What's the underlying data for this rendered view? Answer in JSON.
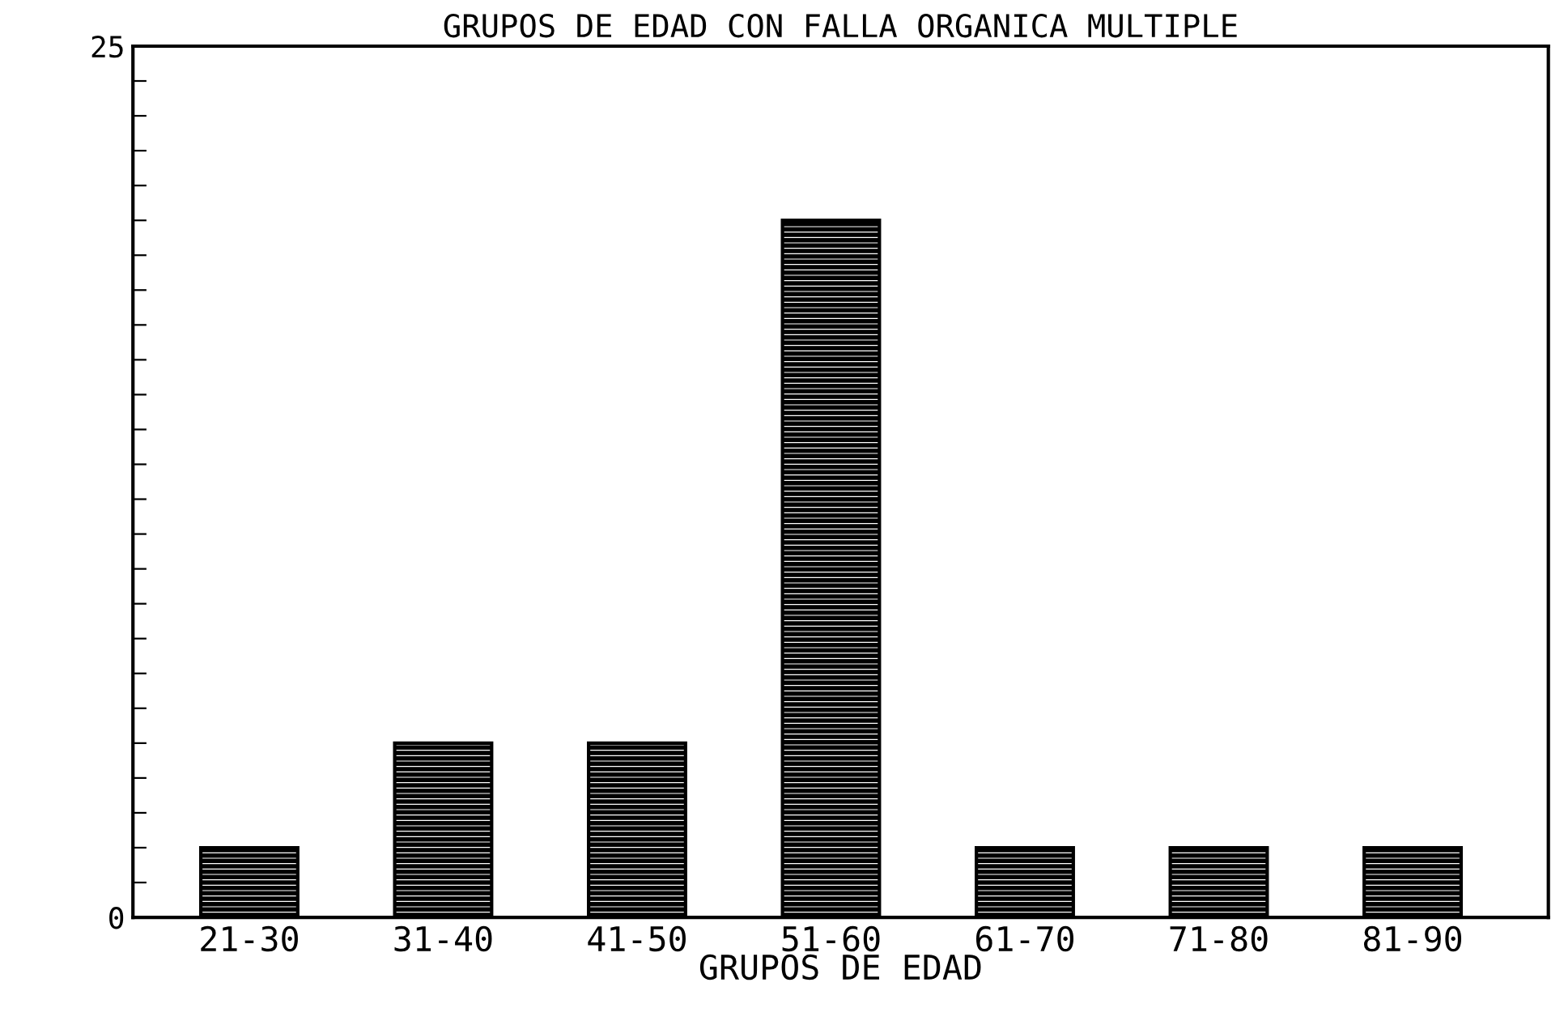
{
  "chart_data": {
    "type": "bar",
    "title": "GRUPOS DE EDAD CON FALLA ORGANICA MULTIPLE",
    "xlabel": "GRUPOS DE EDAD",
    "categories": [
      "21-30",
      "31-40",
      "41-50",
      "51-60",
      "61-70",
      "71-80",
      "81-90"
    ],
    "values": [
      2,
      5,
      5,
      20,
      2,
      2,
      2
    ],
    "color": "#000000",
    "ylim": [
      0,
      25
    ],
    "yticks": [
      0,
      {
        "value": 1,
        "label": null
      },
      {
        "value": 2,
        "label": null
      },
      {
        "value": 3,
        "label": null
      },
      {
        "value": 4,
        "label": null
      },
      {
        "value": 5,
        "label": null
      },
      {
        "value": 6,
        "label": null
      },
      {
        "value": 7,
        "label": null
      },
      {
        "value": 8,
        "label": null
      },
      {
        "value": 9,
        "label": null
      },
      {
        "value": 10,
        "label": null
      },
      {
        "value": 11,
        "label": null
      },
      {
        "value": 12,
        "label": null
      },
      {
        "value": 13,
        "label": null
      },
      {
        "value": 14,
        "label": null
      },
      {
        "value": 15,
        "label": null
      },
      {
        "value": 16,
        "label": null
      },
      {
        "value": 17,
        "label": null
      },
      {
        "value": 18,
        "label": null
      },
      {
        "value": 19,
        "label": null
      },
      {
        "value": 20,
        "label": null
      },
      {
        "value": 21,
        "label": null
      },
      {
        "value": 22,
        "label": null
      },
      {
        "value": 23,
        "label": null
      },
      {
        "value": 24,
        "label": null
      },
      25
    ],
    "grid": false,
    "legend": false
  }
}
